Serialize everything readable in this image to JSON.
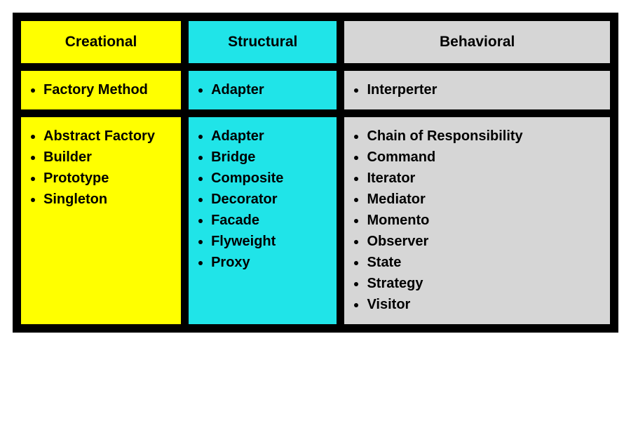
{
  "table": {
    "border_color": "#000000",
    "columns": [
      {
        "header": "Creational",
        "bg": "#ffff00"
      },
      {
        "header": "Structural",
        "bg": "#20e4e8"
      },
      {
        "header": "Behavioral",
        "bg": "#d6d6d6"
      }
    ],
    "rows": [
      {
        "creational": [
          "Factory Method"
        ],
        "structural": [
          "Adapter"
        ],
        "behavioral": [
          "Interperter"
        ]
      },
      {
        "creational": [
          "Abstract Factory",
          "Builder",
          "Prototype",
          "Singleton"
        ],
        "structural": [
          "Adapter",
          "Bridge",
          "Composite",
          "Decorator",
          "Facade",
          "Flyweight",
          "Proxy"
        ],
        "behavioral": [
          "Chain of Responsibility",
          "Command",
          "Iterator",
          "Mediator",
          "Momento",
          "Observer",
          "State",
          "Strategy",
          "Visitor"
        ]
      }
    ],
    "header_fontsize": 21,
    "cell_fontsize": 20,
    "font_weight": "bold",
    "background_color": "#ffffff"
  }
}
